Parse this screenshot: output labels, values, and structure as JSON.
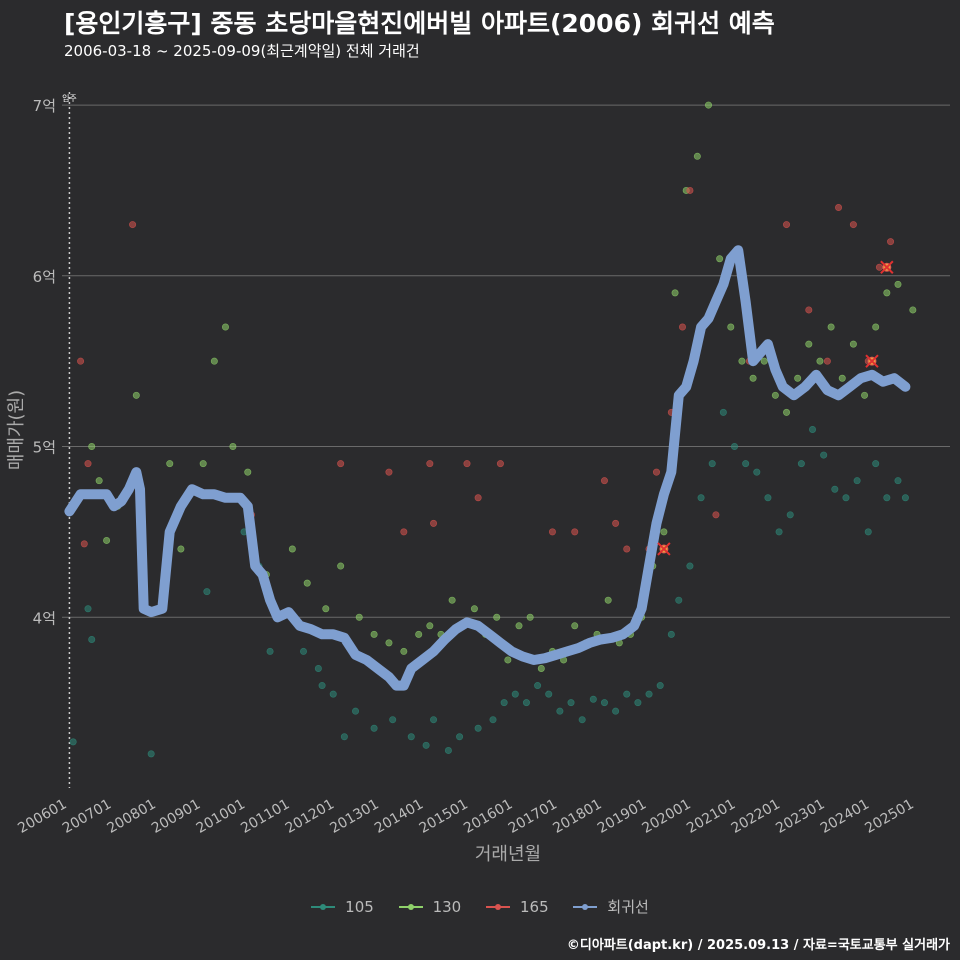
{
  "title": "[용인기흥구] 중동 초당마을현진에버빌 아파트(2006) 회귀선 예측",
  "subtitle": "2006-03-18 ~ 2025-09-09(최근계약일) 전체 거래건",
  "caption": "©디아파트(dapt.kr) / 2025.09.13 / 자료=국토교통부 실거래가",
  "colors": {
    "background": "#2b2b2d",
    "grid": "#6a6a6a",
    "s105": "#2e8b7a",
    "s130": "#8fd16a",
    "s165": "#d9534f",
    "regression": "#7f9fd0"
  },
  "chart_data": {
    "type": "scatter",
    "xlabel": "거래년월",
    "ylabel": "매매가(원)",
    "x_range": [
      "2006-01",
      "2025-12"
    ],
    "ylim": [
      3.0,
      7.1
    ],
    "y_ticks": [
      {
        "value": 4,
        "label": "4억"
      },
      {
        "value": 5,
        "label": "5억"
      },
      {
        "value": 6,
        "label": "6억"
      },
      {
        "value": 7,
        "label": "7억"
      }
    ],
    "x_ticks": [
      "200601",
      "200701",
      "200801",
      "200901",
      "201001",
      "201101",
      "201201",
      "201301",
      "201401",
      "201501",
      "201601",
      "201701",
      "201801",
      "201901",
      "202001",
      "202101",
      "202201",
      "202301",
      "202401",
      "202501"
    ],
    "annotation": {
      "x": "2006-03",
      "label": "입주"
    },
    "legend": [
      "105",
      "130",
      "165",
      "회귀선"
    ],
    "regression": [
      [
        "2006-03",
        4.62
      ],
      [
        "2006-06",
        4.72
      ],
      [
        "2006-09",
        4.72
      ],
      [
        "2007-01",
        4.72
      ],
      [
        "2007-03",
        4.65
      ],
      [
        "2007-05",
        4.68
      ],
      [
        "2007-07",
        4.75
      ],
      [
        "2007-09",
        4.85
      ],
      [
        "2007-10",
        4.75
      ],
      [
        "2007-11",
        4.05
      ],
      [
        "2008-01",
        4.03
      ],
      [
        "2008-04",
        4.05
      ],
      [
        "2008-06",
        4.5
      ],
      [
        "2008-09",
        4.65
      ],
      [
        "2008-12",
        4.75
      ],
      [
        "2009-03",
        4.72
      ],
      [
        "2009-06",
        4.72
      ],
      [
        "2009-09",
        4.7
      ],
      [
        "2010-01",
        4.7
      ],
      [
        "2010-03",
        4.65
      ],
      [
        "2010-05",
        4.3
      ],
      [
        "2010-07",
        4.25
      ],
      [
        "2010-09",
        4.1
      ],
      [
        "2010-11",
        4.0
      ],
      [
        "2011-02",
        4.03
      ],
      [
        "2011-05",
        3.95
      ],
      [
        "2011-08",
        3.93
      ],
      [
        "2011-11",
        3.9
      ],
      [
        "2012-02",
        3.9
      ],
      [
        "2012-05",
        3.88
      ],
      [
        "2012-08",
        3.78
      ],
      [
        "2012-11",
        3.75
      ],
      [
        "2013-02",
        3.7
      ],
      [
        "2013-05",
        3.65
      ],
      [
        "2013-07",
        3.6
      ],
      [
        "2013-09",
        3.6
      ],
      [
        "2013-11",
        3.7
      ],
      [
        "2014-02",
        3.75
      ],
      [
        "2014-05",
        3.8
      ],
      [
        "2014-08",
        3.87
      ],
      [
        "2014-11",
        3.93
      ],
      [
        "2015-02",
        3.97
      ],
      [
        "2015-05",
        3.95
      ],
      [
        "2015-08",
        3.9
      ],
      [
        "2015-11",
        3.85
      ],
      [
        "2016-02",
        3.8
      ],
      [
        "2016-05",
        3.77
      ],
      [
        "2016-08",
        3.75
      ],
      [
        "2016-11",
        3.76
      ],
      [
        "2017-02",
        3.78
      ],
      [
        "2017-05",
        3.8
      ],
      [
        "2017-08",
        3.82
      ],
      [
        "2017-11",
        3.85
      ],
      [
        "2018-02",
        3.87
      ],
      [
        "2018-05",
        3.88
      ],
      [
        "2018-08",
        3.9
      ],
      [
        "2018-11",
        3.95
      ],
      [
        "2019-01",
        4.05
      ],
      [
        "2019-03",
        4.3
      ],
      [
        "2019-05",
        4.55
      ],
      [
        "2019-07",
        4.72
      ],
      [
        "2019-09",
        4.85
      ],
      [
        "2019-11",
        5.3
      ],
      [
        "2020-01",
        5.35
      ],
      [
        "2020-03",
        5.5
      ],
      [
        "2020-05",
        5.7
      ],
      [
        "2020-07",
        5.75
      ],
      [
        "2020-09",
        5.85
      ],
      [
        "2020-11",
        5.95
      ],
      [
        "2021-01",
        6.1
      ],
      [
        "2021-03",
        6.15
      ],
      [
        "2021-05",
        5.85
      ],
      [
        "2021-07",
        5.5
      ],
      [
        "2021-09",
        5.55
      ],
      [
        "2021-11",
        5.6
      ],
      [
        "2022-01",
        5.45
      ],
      [
        "2022-03",
        5.35
      ],
      [
        "2022-06",
        5.3
      ],
      [
        "2022-09",
        5.35
      ],
      [
        "2022-12",
        5.42
      ],
      [
        "2023-03",
        5.33
      ],
      [
        "2023-06",
        5.3
      ],
      [
        "2023-09",
        5.35
      ],
      [
        "2023-12",
        5.4
      ],
      [
        "2024-03",
        5.42
      ],
      [
        "2024-06",
        5.38
      ],
      [
        "2024-09",
        5.4
      ],
      [
        "2024-12",
        5.35
      ]
    ],
    "series": [
      {
        "name": "105",
        "points": [
          [
            "2006-04",
            3.27
          ],
          [
            "2006-08",
            4.05
          ],
          [
            "2006-09",
            3.87
          ],
          [
            "2007-05",
            4.7
          ],
          [
            "2008-01",
            3.2
          ],
          [
            "2009-04",
            4.15
          ],
          [
            "2010-02",
            4.5
          ],
          [
            "2010-06",
            4.3
          ],
          [
            "2010-09",
            3.8
          ],
          [
            "2011-06",
            3.8
          ],
          [
            "2011-10",
            3.7
          ],
          [
            "2011-11",
            3.6
          ],
          [
            "2012-02",
            3.55
          ],
          [
            "2012-05",
            3.3
          ],
          [
            "2012-08",
            3.45
          ],
          [
            "2013-01",
            3.35
          ],
          [
            "2013-06",
            3.4
          ],
          [
            "2013-11",
            3.3
          ],
          [
            "2014-03",
            3.25
          ],
          [
            "2014-05",
            3.4
          ],
          [
            "2014-09",
            3.22
          ],
          [
            "2014-12",
            3.3
          ],
          [
            "2015-05",
            3.35
          ],
          [
            "2015-09",
            3.4
          ],
          [
            "2015-12",
            3.5
          ],
          [
            "2016-03",
            3.55
          ],
          [
            "2016-06",
            3.5
          ],
          [
            "2016-09",
            3.6
          ],
          [
            "2016-12",
            3.55
          ],
          [
            "2017-03",
            3.45
          ],
          [
            "2017-06",
            3.5
          ],
          [
            "2017-09",
            3.4
          ],
          [
            "2017-12",
            3.52
          ],
          [
            "2018-03",
            3.5
          ],
          [
            "2018-06",
            3.45
          ],
          [
            "2018-09",
            3.55
          ],
          [
            "2018-12",
            3.5
          ],
          [
            "2019-03",
            3.55
          ],
          [
            "2019-06",
            3.6
          ],
          [
            "2019-09",
            3.9
          ],
          [
            "2019-11",
            4.1
          ],
          [
            "2020-02",
            4.3
          ],
          [
            "2020-05",
            4.7
          ],
          [
            "2020-08",
            4.9
          ],
          [
            "2020-11",
            5.2
          ],
          [
            "2021-02",
            5.0
          ],
          [
            "2021-05",
            4.9
          ],
          [
            "2021-08",
            4.85
          ],
          [
            "2021-11",
            4.7
          ],
          [
            "2022-02",
            4.5
          ],
          [
            "2022-05",
            4.6
          ],
          [
            "2022-08",
            4.9
          ],
          [
            "2022-11",
            5.1
          ],
          [
            "2023-02",
            4.95
          ],
          [
            "2023-05",
            4.75
          ],
          [
            "2023-08",
            4.7
          ],
          [
            "2023-11",
            4.8
          ],
          [
            "2024-02",
            4.5
          ],
          [
            "2024-04",
            4.9
          ],
          [
            "2024-07",
            4.7
          ],
          [
            "2024-10",
            4.8
          ],
          [
            "2024-12",
            4.7
          ]
        ]
      },
      {
        "name": "130",
        "points": [
          [
            "2006-09",
            5.0
          ],
          [
            "2006-11",
            4.8
          ],
          [
            "2007-01",
            4.45
          ],
          [
            "2007-04",
            4.65
          ],
          [
            "2007-09",
            5.3
          ],
          [
            "2008-06",
            4.9
          ],
          [
            "2008-09",
            4.4
          ],
          [
            "2009-03",
            4.9
          ],
          [
            "2009-06",
            5.5
          ],
          [
            "2009-09",
            5.7
          ],
          [
            "2009-11",
            5.0
          ],
          [
            "2010-03",
            4.85
          ],
          [
            "2010-08",
            4.25
          ],
          [
            "2011-03",
            4.4
          ],
          [
            "2011-07",
            4.2
          ],
          [
            "2011-12",
            4.05
          ],
          [
            "2012-04",
            4.3
          ],
          [
            "2012-09",
            4.0
          ],
          [
            "2013-01",
            3.9
          ],
          [
            "2013-05",
            3.85
          ],
          [
            "2013-09",
            3.8
          ],
          [
            "2014-01",
            3.9
          ],
          [
            "2014-04",
            3.95
          ],
          [
            "2014-07",
            3.9
          ],
          [
            "2014-10",
            4.1
          ],
          [
            "2015-01",
            3.95
          ],
          [
            "2015-04",
            4.05
          ],
          [
            "2015-07",
            3.9
          ],
          [
            "2015-10",
            4.0
          ],
          [
            "2016-01",
            3.75
          ],
          [
            "2016-04",
            3.95
          ],
          [
            "2016-07",
            4.0
          ],
          [
            "2016-10",
            3.7
          ],
          [
            "2017-01",
            3.8
          ],
          [
            "2017-04",
            3.75
          ],
          [
            "2017-07",
            3.95
          ],
          [
            "2017-10",
            3.85
          ],
          [
            "2018-01",
            3.9
          ],
          [
            "2018-04",
            4.1
          ],
          [
            "2018-07",
            3.85
          ],
          [
            "2018-10",
            3.9
          ],
          [
            "2019-01",
            4.0
          ],
          [
            "2019-04",
            4.3
          ],
          [
            "2019-07",
            4.5
          ],
          [
            "2019-10",
            5.9
          ],
          [
            "2020-01",
            6.5
          ],
          [
            "2020-04",
            6.7
          ],
          [
            "2020-07",
            7.0
          ],
          [
            "2020-10",
            6.1
          ],
          [
            "2021-01",
            5.7
          ],
          [
            "2021-04",
            5.5
          ],
          [
            "2021-07",
            5.4
          ],
          [
            "2021-10",
            5.5
          ],
          [
            "2022-01",
            5.3
          ],
          [
            "2022-04",
            5.2
          ],
          [
            "2022-07",
            5.4
          ],
          [
            "2022-10",
            5.6
          ],
          [
            "2023-01",
            5.5
          ],
          [
            "2023-04",
            5.7
          ],
          [
            "2023-07",
            5.4
          ],
          [
            "2023-10",
            5.6
          ],
          [
            "2024-01",
            5.3
          ],
          [
            "2024-04",
            5.7
          ],
          [
            "2024-07",
            5.9
          ],
          [
            "2024-10",
            5.95
          ],
          [
            "2025-02",
            5.8
          ]
        ]
      },
      {
        "name": "165",
        "points": [
          [
            "2006-06",
            5.5
          ],
          [
            "2006-07",
            4.43
          ],
          [
            "2006-08",
            4.9
          ],
          [
            "2007-08",
            6.3
          ],
          [
            "2010-04",
            4.6
          ],
          [
            "2012-04",
            4.9
          ],
          [
            "2013-05",
            4.85
          ],
          [
            "2013-09",
            4.5
          ],
          [
            "2014-04",
            4.9
          ],
          [
            "2014-05",
            4.55
          ],
          [
            "2015-02",
            4.9
          ],
          [
            "2015-05",
            4.7
          ],
          [
            "2015-11",
            4.9
          ],
          [
            "2017-01",
            4.5
          ],
          [
            "2017-07",
            4.5
          ],
          [
            "2018-03",
            4.8
          ],
          [
            "2018-06",
            4.55
          ],
          [
            "2018-09",
            4.4
          ],
          [
            "2019-03",
            4.4
          ],
          [
            "2019-05",
            4.85
          ],
          [
            "2019-09",
            5.2
          ],
          [
            "2019-12",
            5.7
          ],
          [
            "2020-02",
            6.5
          ],
          [
            "2020-09",
            4.6
          ],
          [
            "2021-06",
            5.5
          ],
          [
            "2022-04",
            6.3
          ],
          [
            "2022-10",
            5.8
          ],
          [
            "2023-03",
            5.5
          ],
          [
            "2023-06",
            6.4
          ],
          [
            "2023-10",
            6.3
          ],
          [
            "2024-02",
            5.5
          ],
          [
            "2024-05",
            6.05
          ],
          [
            "2024-08",
            6.2
          ]
        ]
      }
    ],
    "highlights": [
      [
        "2019-07",
        4.4
      ],
      [
        "2024-03",
        5.5
      ],
      [
        "2024-07",
        6.05
      ]
    ]
  }
}
